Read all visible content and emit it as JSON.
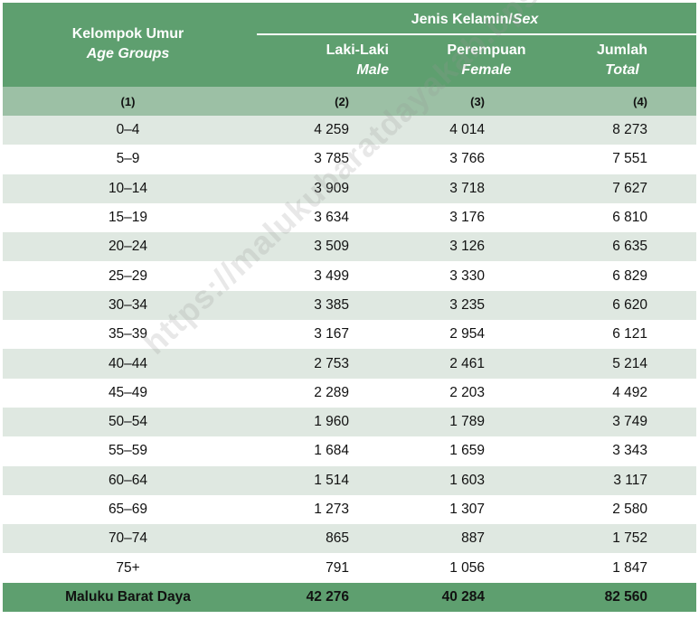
{
  "header": {
    "group_label": "Kelompok Umur",
    "group_label_en": "Age Groups",
    "sex_label": "Jenis Kelamin/",
    "sex_label_en": "Sex",
    "male_label": "Laki-Laki",
    "male_label_en": "Male",
    "female_label": "Perempuan",
    "female_label_en": "Female",
    "total_label": "Jumlah",
    "total_label_en": "Total"
  },
  "column_numbers": [
    "(1)",
    "(2)",
    "(3)",
    "(4)"
  ],
  "rows": [
    {
      "age": "0–4",
      "male": "4 259",
      "female": "4 014",
      "total": "8 273"
    },
    {
      "age": "5–9",
      "male": "3 785",
      "female": "3 766",
      "total": "7 551"
    },
    {
      "age": "10–14",
      "male": "3 909",
      "female": "3 718",
      "total": "7 627"
    },
    {
      "age": "15–19",
      "male": "3 634",
      "female": "3 176",
      "total": "6 810"
    },
    {
      "age": "20–24",
      "male": "3 509",
      "female": "3 126",
      "total": "6 635"
    },
    {
      "age": "25–29",
      "male": "3 499",
      "female": "3 330",
      "total": "6 829"
    },
    {
      "age": "30–34",
      "male": "3 385",
      "female": "3 235",
      "total": "6 620"
    },
    {
      "age": "35–39",
      "male": "3 167",
      "female": "2 954",
      "total": "6 121"
    },
    {
      "age": "40–44",
      "male": "2 753",
      "female": "2 461",
      "total": "5 214"
    },
    {
      "age": "45–49",
      "male": "2 289",
      "female": "2 203",
      "total": "4 492"
    },
    {
      "age": "50–54",
      "male": "1 960",
      "female": "1 789",
      "total": "3 749"
    },
    {
      "age": "55–59",
      "male": "1 684",
      "female": "1 659",
      "total": "3 343"
    },
    {
      "age": "60–64",
      "male": "1 514",
      "female": "1 603",
      "total": "3 117"
    },
    {
      "age": "65–69",
      "male": "1 273",
      "female": "1 307",
      "total": "2 580"
    },
    {
      "age": "70–74",
      "male": "865",
      "female": "887",
      "total": "1 752"
    },
    {
      "age": "75+",
      "male": "791",
      "female": "1 056",
      "total": "1 847"
    }
  ],
  "total_row": {
    "label": "Maluku Barat Daya",
    "male": "42 276",
    "female": "40 284",
    "total": "82 560"
  },
  "watermark": "https://malukubaratdayakab.bps.go.id",
  "colors": {
    "header": "#5e9f6f",
    "subheader": "#9cc0a5",
    "stripe": "#dfe8e1"
  }
}
